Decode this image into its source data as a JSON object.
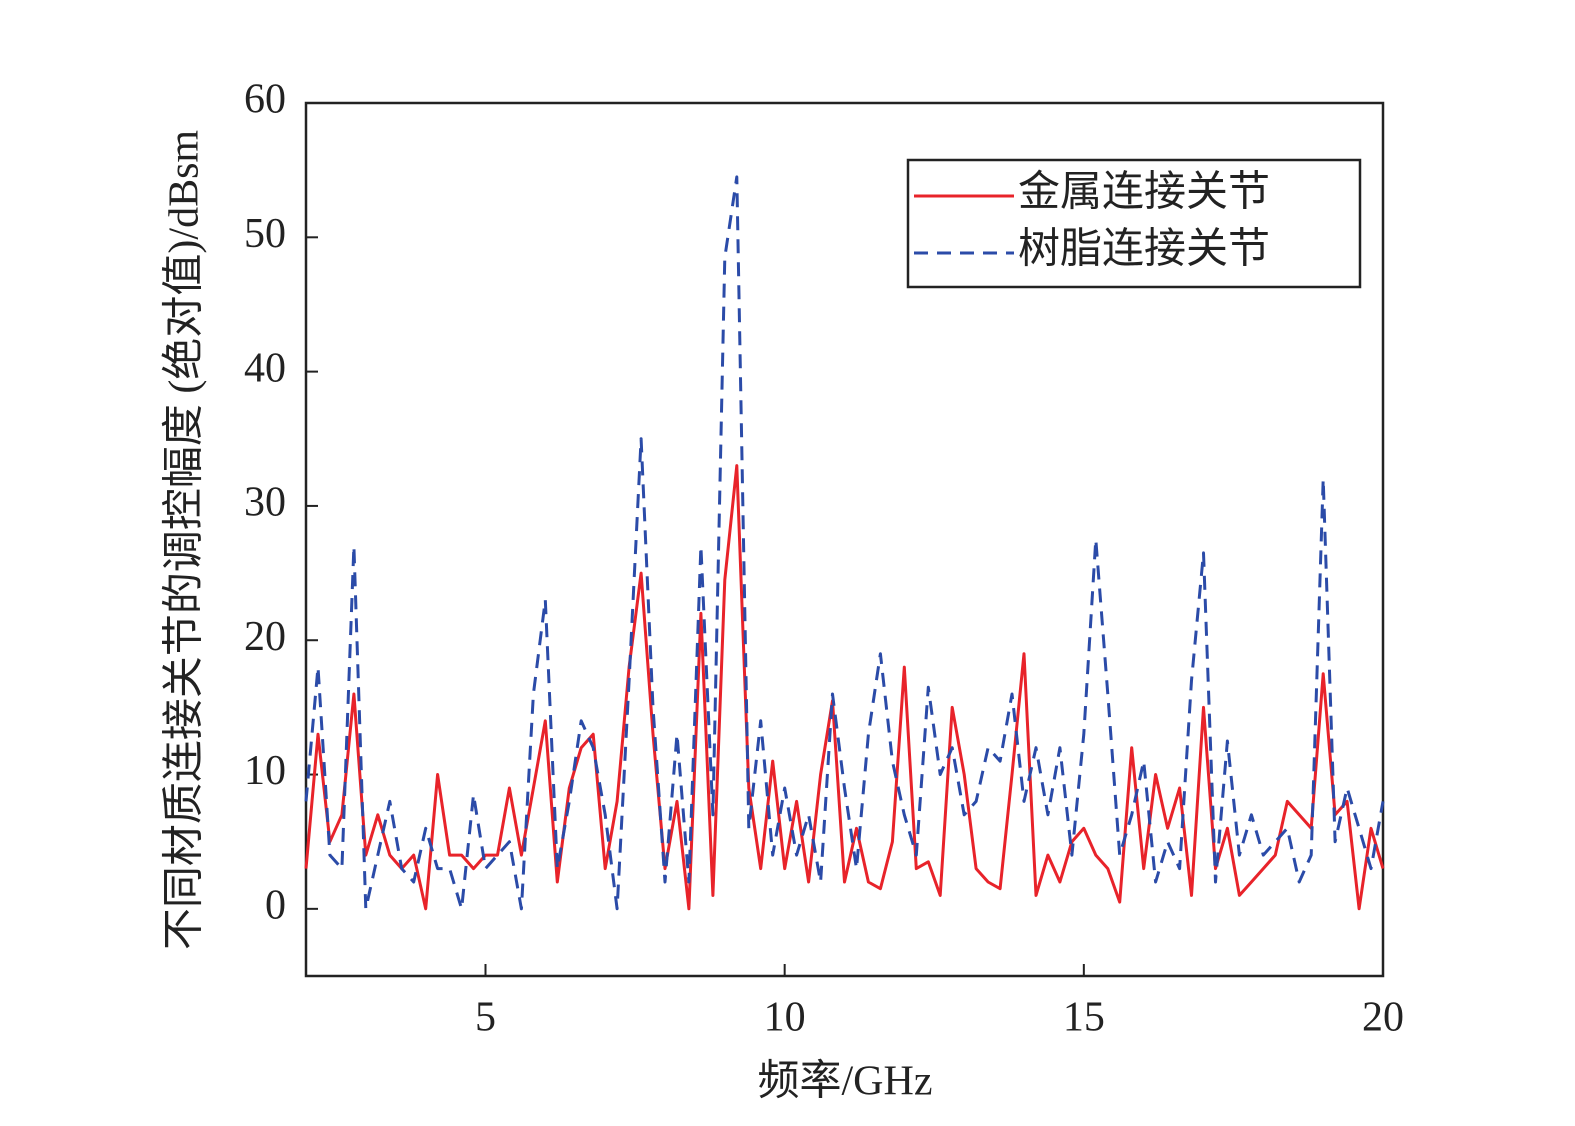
{
  "chart_data": {
    "type": "line",
    "x_label": "频率/GHz",
    "y_label": "不同材质连接关节的调控幅度 (绝对值)/dBsm",
    "x": [
      2.0,
      2.2,
      2.4,
      2.6,
      2.8,
      3.0,
      3.2,
      3.4,
      3.6,
      3.8,
      4.0,
      4.2,
      4.4,
      4.6,
      4.8,
      5.0,
      5.2,
      5.4,
      5.6,
      5.8,
      6.0,
      6.2,
      6.4,
      6.6,
      6.8,
      7.0,
      7.2,
      7.4,
      7.6,
      7.8,
      8.0,
      8.2,
      8.4,
      8.6,
      8.8,
      9.0,
      9.2,
      9.4,
      9.6,
      9.8,
      10.0,
      10.2,
      10.4,
      10.6,
      10.8,
      11.0,
      11.2,
      11.4,
      11.6,
      11.8,
      12.0,
      12.2,
      12.4,
      12.6,
      12.8,
      13.0,
      13.2,
      13.4,
      13.6,
      13.8,
      14.0,
      14.2,
      14.4,
      14.6,
      14.8,
      15.0,
      15.2,
      15.4,
      15.6,
      15.8,
      16.0,
      16.2,
      16.4,
      16.6,
      16.8,
      17.0,
      17.2,
      17.4,
      17.6,
      17.8,
      18.0,
      18.2,
      18.4,
      18.6,
      18.8,
      19.0,
      19.2,
      19.4,
      19.6,
      19.8,
      20.0
    ],
    "series": [
      {
        "name": "金属连接关节",
        "color": "#e8232a",
        "dash": false,
        "values": [
          3,
          13,
          5,
          7,
          16,
          4,
          7,
          4,
          3,
          4,
          0,
          10,
          4,
          4,
          3,
          4,
          4,
          9,
          4,
          9,
          14,
          2,
          9,
          12,
          13,
          3,
          8,
          18,
          25,
          13,
          3,
          8,
          0,
          22,
          1,
          24.5,
          33,
          9,
          3,
          11,
          3,
          8,
          2,
          10,
          15.5,
          2,
          6,
          2,
          1.5,
          5,
          18,
          3,
          3.5,
          1,
          15,
          10,
          3,
          2,
          1.5,
          10,
          19,
          1,
          4,
          2,
          5,
          6,
          4,
          3,
          0.5,
          12,
          3,
          10,
          6,
          9,
          1,
          15,
          3,
          6,
          1,
          2,
          3,
          4,
          8,
          7,
          6,
          17.5,
          7,
          8,
          0,
          6,
          3
        ]
      },
      {
        "name": "树脂连接关节",
        "color": "#2b4ba8",
        "dash": true,
        "values": [
          8,
          18,
          4,
          3,
          27,
          0,
          4,
          8,
          3,
          2,
          6,
          3,
          3,
          0,
          8.5,
          3,
          4,
          5,
          0,
          16,
          23,
          3,
          8,
          14,
          12,
          7,
          0,
          17,
          35,
          15,
          2,
          13,
          2,
          27,
          7,
          48.5,
          54.5,
          6,
          14,
          4,
          9,
          4,
          7,
          2,
          16,
          9,
          3,
          13,
          19,
          11,
          7,
          4,
          16.5,
          10,
          12,
          7,
          8,
          12,
          11,
          16,
          8,
          12,
          7,
          12,
          4,
          13,
          27.5,
          16,
          4,
          7,
          11,
          2,
          5,
          3,
          17,
          26.5,
          2,
          12.5,
          4,
          7,
          4,
          5,
          6,
          2,
          4,
          32,
          5,
          9,
          6,
          3,
          8
        ]
      }
    ],
    "xlim": [
      2,
      20
    ],
    "xticks": [
      5,
      10,
      15,
      20
    ],
    "ylim": [
      -5,
      60
    ],
    "yticks": [
      0,
      10,
      20,
      30,
      40,
      50,
      60
    ],
    "legend": "upper right",
    "grid": false
  }
}
